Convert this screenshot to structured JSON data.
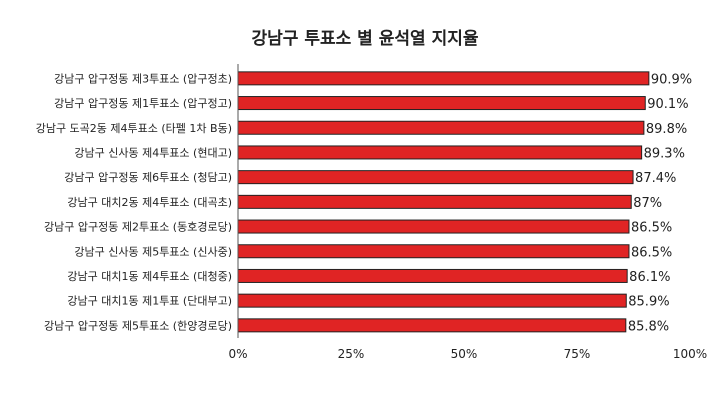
{
  "chart_data": {
    "type": "bar",
    "orientation": "horizontal",
    "title": "강남구 투표소 별 윤석열 지지율",
    "categories": [
      "강남구 압구정동 제3투표소 (압구정초)",
      "강남구 압구정동 제1투표소 (압구정고)",
      "강남구 도곡2동 제4투표소 (타펠 1차 B동)",
      "강남구 신사동 제4투표소 (현대고)",
      "강남구 압구정동 제6투표소 (청담고)",
      "강남구 대치2동 제4투표소 (대곡초)",
      "강남구 압구정동 제2투표소 (동호경로당)",
      "강남구 신사동 제5투표소 (신사중)",
      "강남구 대치1동 제4투표소 (대청중)",
      "강남구 대치1동 제1투표 (단대부고)",
      "강남구 압구정동 제5투표소 (한양경로당)"
    ],
    "values": [
      90.9,
      90.1,
      89.8,
      89.3,
      87.4,
      87,
      86.5,
      86.5,
      86.1,
      85.9,
      85.8
    ],
    "value_labels": [
      "90.9%",
      "90.1%",
      "89.8%",
      "89.3%",
      "87.4%",
      "87%",
      "86.5%",
      "86.5%",
      "86.1%",
      "85.9%",
      "85.8%"
    ],
    "x_ticks": [
      "0%",
      "25%",
      "50%",
      "75%",
      "100%"
    ],
    "xlim": [
      0,
      100
    ],
    "grid": false,
    "bar_color": "#e02424",
    "bar_edge_color": "#222222"
  }
}
